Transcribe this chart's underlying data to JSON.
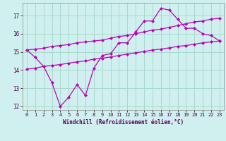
{
  "xlabel": "Windchill (Refroidissement éolien,°C)",
  "background_color": "#cff0ee",
  "grid_color": "#aad8cc",
  "line_color": "#bb00bb",
  "xlim": [
    -0.5,
    23.5
  ],
  "ylim": [
    11.8,
    17.7
  ],
  "yticks": [
    12,
    13,
    14,
    15,
    16,
    17
  ],
  "xticks": [
    0,
    1,
    2,
    3,
    4,
    5,
    6,
    7,
    8,
    9,
    10,
    11,
    12,
    13,
    14,
    15,
    16,
    17,
    18,
    19,
    20,
    21,
    22,
    23
  ],
  "hours": [
    0,
    1,
    2,
    3,
    4,
    5,
    6,
    7,
    8,
    9,
    10,
    11,
    12,
    13,
    14,
    15,
    16,
    17,
    18,
    19,
    20,
    21,
    22,
    23
  ],
  "line_main": [
    15.1,
    14.7,
    14.2,
    13.3,
    12.0,
    12.5,
    13.2,
    12.6,
    14.1,
    14.8,
    14.9,
    15.5,
    15.5,
    16.1,
    16.7,
    16.7,
    17.4,
    17.3,
    16.8,
    16.3,
    16.3,
    16.0,
    15.9,
    15.6
  ],
  "line_upper": [
    15.1,
    15.15,
    15.2,
    15.3,
    15.35,
    15.4,
    15.5,
    15.55,
    15.6,
    15.65,
    15.75,
    15.85,
    15.9,
    16.0,
    16.1,
    16.2,
    16.25,
    16.35,
    16.45,
    16.55,
    16.65,
    16.7,
    16.8,
    16.85
  ],
  "line_lower": [
    14.05,
    14.1,
    14.2,
    14.25,
    14.3,
    14.38,
    14.45,
    14.5,
    14.6,
    14.65,
    14.72,
    14.8,
    14.88,
    14.95,
    15.02,
    15.1,
    15.15,
    15.22,
    15.3,
    15.35,
    15.42,
    15.5,
    15.55,
    15.6
  ]
}
